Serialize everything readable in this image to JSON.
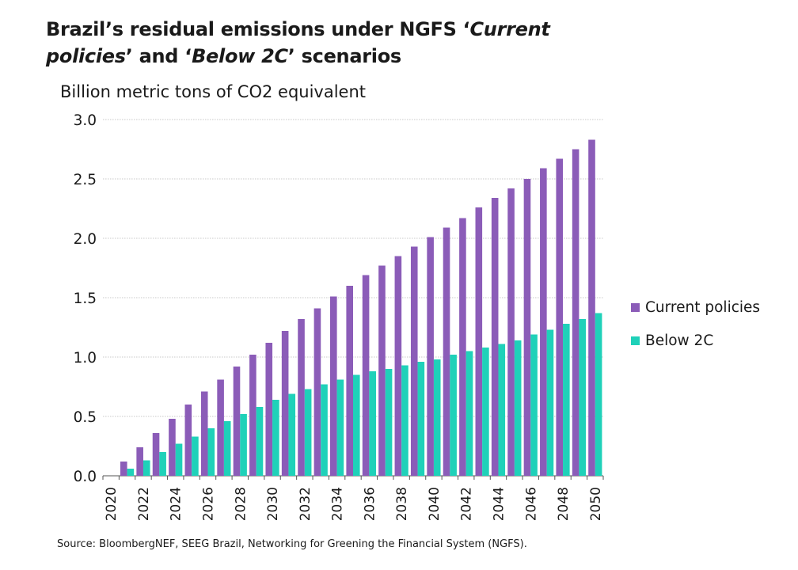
{
  "title_parts": {
    "p1": "Brazil’s residual emissions under NGFS ‘",
    "p2": "Current",
    "p3": "policies",
    "p4": "’ and ‘",
    "p5": "Below 2C",
    "p6": "’ scenarios"
  },
  "source": "Source: BloombergNEF, SEEG Brazil, Networking for Greening the Financial System (NGFS).",
  "colors": {
    "current": "#8B5CB8",
    "below": "#1FD1B9",
    "grid": "#c8c8c8",
    "axis": "#555555"
  },
  "chart_data": {
    "type": "bar",
    "title": "Brazil’s residual emissions under NGFS ‘Current policies’ and ‘Below 2C’ scenarios",
    "ylabel": "Billion metric tons of CO2 equivalent",
    "xlabel": "",
    "ylim": [
      0,
      3.0
    ],
    "yticks": [
      "0.0",
      "0.5",
      "1.0",
      "1.5",
      "2.0",
      "2.5",
      "3.0"
    ],
    "grid": true,
    "legend_position": "right",
    "categories": [
      "2020",
      "2021",
      "2022",
      "2023",
      "2024",
      "2025",
      "2026",
      "2027",
      "2028",
      "2029",
      "2030",
      "2031",
      "2032",
      "2033",
      "2034",
      "2035",
      "2036",
      "2037",
      "2038",
      "2039",
      "2040",
      "2041",
      "2042",
      "2043",
      "2044",
      "2045",
      "2046",
      "2047",
      "2048",
      "2049",
      "2050"
    ],
    "xtick_labels": [
      "2020",
      "2022",
      "2024",
      "2026",
      "2028",
      "2030",
      "2032",
      "2034",
      "2036",
      "2038",
      "2040",
      "2042",
      "2044",
      "2046",
      "2048",
      "2050"
    ],
    "series": [
      {
        "name": "Current policies",
        "values": [
          0,
          0.12,
          0.24,
          0.36,
          0.48,
          0.6,
          0.71,
          0.81,
          0.92,
          1.02,
          1.12,
          1.22,
          1.32,
          1.41,
          1.51,
          1.6,
          1.69,
          1.77,
          1.85,
          1.93,
          2.01,
          2.09,
          2.17,
          2.26,
          2.34,
          2.42,
          2.5,
          2.59,
          2.67,
          2.75,
          2.83
        ]
      },
      {
        "name": "Below 2C",
        "values": [
          0,
          0.06,
          0.13,
          0.2,
          0.27,
          0.33,
          0.4,
          0.46,
          0.52,
          0.58,
          0.64,
          0.69,
          0.73,
          0.77,
          0.81,
          0.85,
          0.88,
          0.9,
          0.93,
          0.96,
          0.98,
          1.02,
          1.05,
          1.08,
          1.11,
          1.14,
          1.19,
          1.23,
          1.28,
          1.32,
          1.37
        ]
      }
    ]
  }
}
